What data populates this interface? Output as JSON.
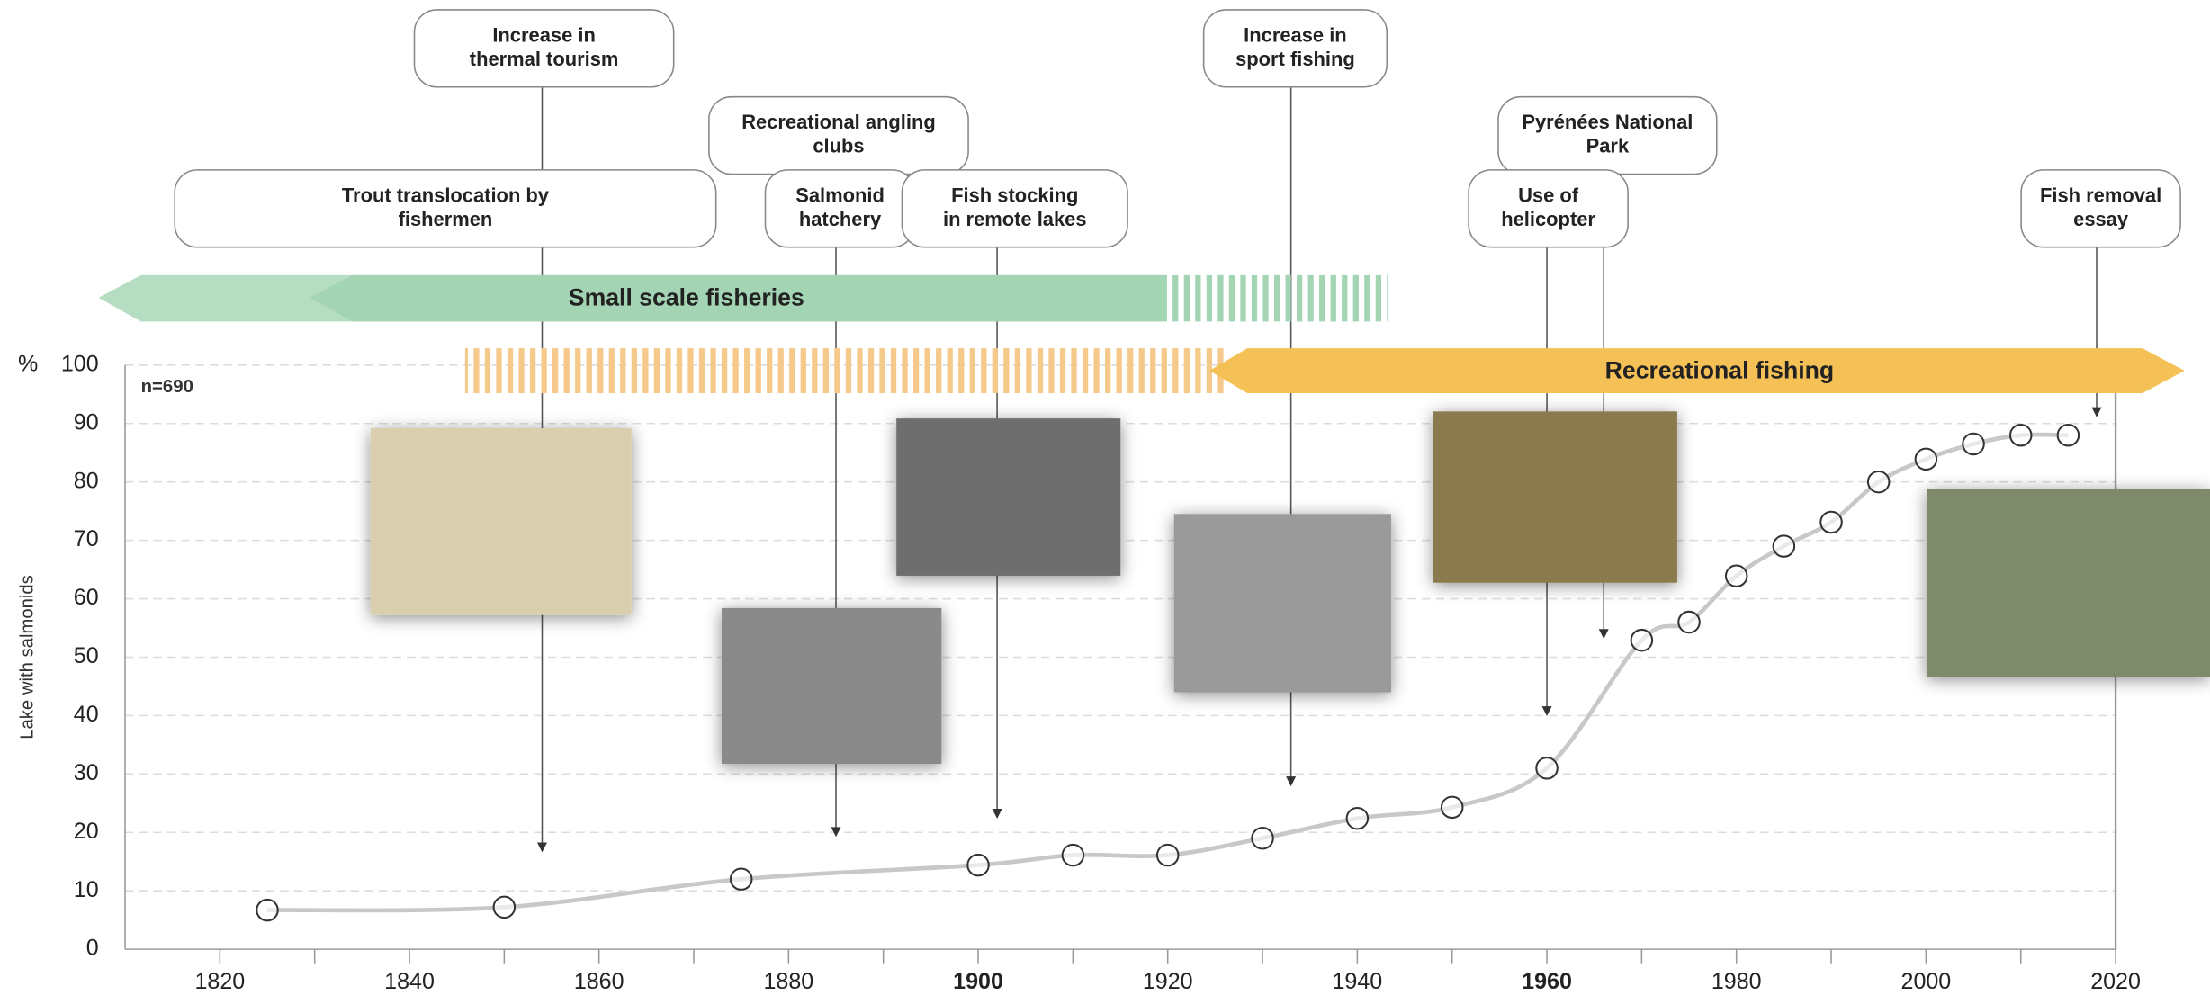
{
  "chart_data": {
    "type": "line",
    "y_label": "Lake with salmonids",
    "y_unit": "%",
    "note": "n=690",
    "x": [
      1825,
      1850,
      1875,
      1900,
      1910,
      1920,
      1930,
      1940,
      1950,
      1960,
      1970,
      1975,
      1980,
      1985,
      1990,
      1995,
      2000,
      2005,
      2010,
      2015
    ],
    "values": [
      6.7,
      7.2,
      12.0,
      14.4,
      16.1,
      16.1,
      19.0,
      22.4,
      24.3,
      31.0,
      52.9,
      56.0,
      63.9,
      69.0,
      73.1,
      80.0,
      83.9,
      86.5,
      88.0,
      88.0
    ],
    "color": "#c8c8c8",
    "xlim": [
      1810,
      2020
    ],
    "xticks": [
      1820,
      1840,
      1860,
      1880,
      1900,
      1920,
      1940,
      1960,
      1980,
      2000,
      2020
    ],
    "bold_xticks": [
      1900,
      1960
    ],
    "ylim": [
      0,
      100
    ],
    "yticks": [
      0,
      10,
      20,
      30,
      40,
      50,
      60,
      70,
      80,
      90,
      100
    ],
    "grid": true,
    "periods": [
      {
        "name": "Small scale fisheries",
        "color": "#a3d4b3"
      },
      {
        "name": "Recreational fishing",
        "color": "#f5c157"
      }
    ],
    "events": [
      {
        "lines": [
          "Increase in",
          "thermal tourism"
        ],
        "year": 1854
      },
      {
        "lines": [
          "Trout translocation by",
          "fishermen"
        ],
        "year": 1854
      },
      {
        "lines": [
          "Recreational angling",
          "clubs"
        ],
        "year": 1885
      },
      {
        "lines": [
          "Salmonid",
          "hatchery"
        ],
        "year": 1885
      },
      {
        "lines": [
          "Fish stocking",
          "in remote lakes"
        ],
        "year": 1902
      },
      {
        "lines": [
          "Increase in",
          "sport fishing"
        ],
        "year": 1933
      },
      {
        "lines": [
          "Pyrénées National",
          "Park"
        ],
        "year": 1966
      },
      {
        "lines": [
          "Use of",
          "helicopter"
        ],
        "year": 1960
      },
      {
        "lines": [
          "Fish removal",
          "essay"
        ],
        "year": 2018
      }
    ]
  }
}
